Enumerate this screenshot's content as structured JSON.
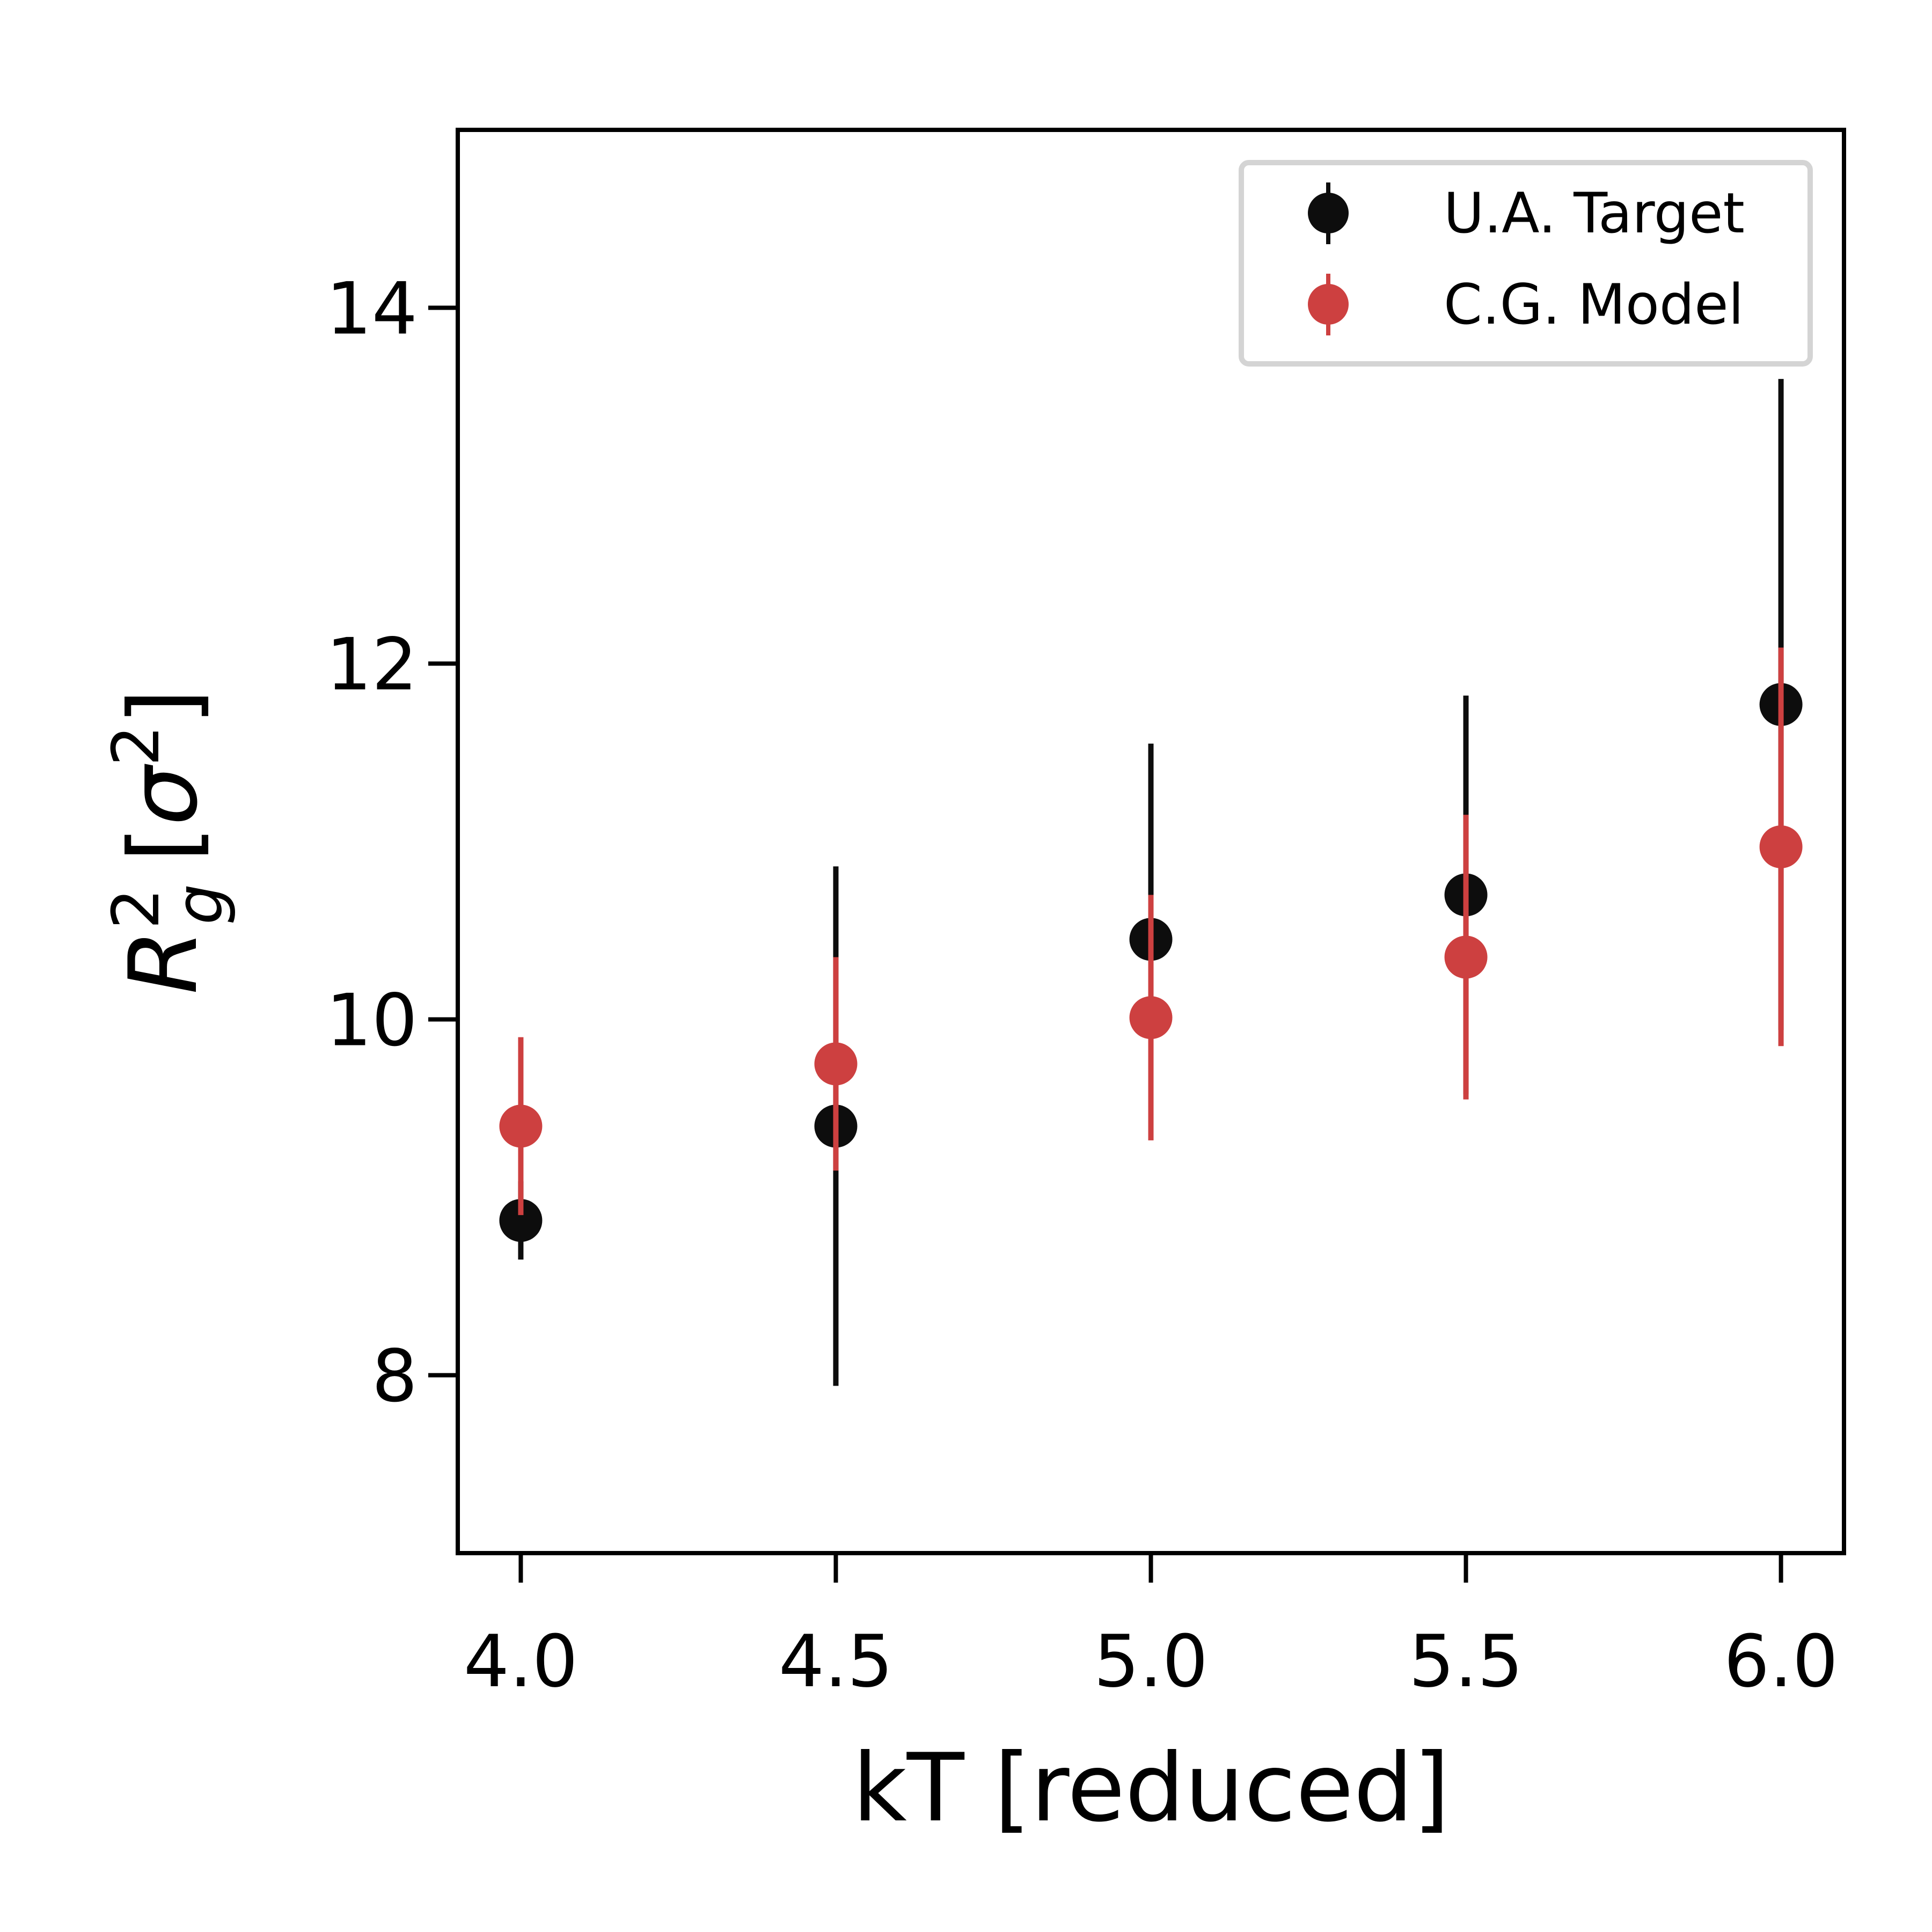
{
  "chart_data": {
    "type": "scatter",
    "xlabel": "kT [reduced]",
    "ylabel": {
      "base": "R",
      "superscript": "2",
      "subscript": "g",
      "unit_open": "[",
      "unit_symbol": "σ",
      "unit_superscript": "2",
      "unit_close": "]"
    },
    "xlim": [
      3.9,
      6.1
    ],
    "ylim": [
      7.0,
      15.0
    ],
    "xticks": [
      4.0,
      4.5,
      5.0,
      5.5,
      6.0
    ],
    "xtick_labels": [
      "4.0",
      "4.5",
      "5.0",
      "5.5",
      "6.0"
    ],
    "yticks": [
      8,
      10,
      12,
      14
    ],
    "ytick_labels": [
      "8",
      "10",
      "12",
      "14"
    ],
    "grid": false,
    "legend_position": "top-right",
    "series": [
      {
        "name": "U.A. Target",
        "color": "#0d0d0d",
        "x": [
          4.0,
          4.5,
          5.0,
          5.5,
          6.0
        ],
        "y": [
          8.87,
          9.4,
          10.45,
          10.7,
          11.77
        ],
        "yerr": [
          0.22,
          1.46,
          1.1,
          1.12,
          1.83
        ]
      },
      {
        "name": "C.G. Model",
        "color": "#cd4040",
        "x": [
          4.0,
          4.5,
          5.0,
          5.5,
          6.0
        ],
        "y": [
          9.4,
          9.75,
          10.01,
          10.35,
          10.97
        ],
        "yerr": [
          0.5,
          0.6,
          0.69,
          0.8,
          1.12
        ]
      }
    ]
  }
}
